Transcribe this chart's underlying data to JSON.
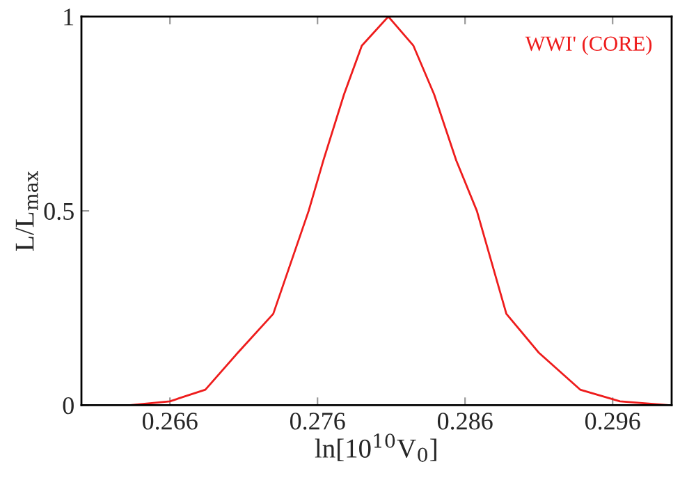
{
  "chart_data": {
    "type": "line",
    "xlabel": "ln[10$^{10}$V$_{0}$]",
    "ylabel": "L/L$_{max}$",
    "xlim": [
      0.26,
      0.3
    ],
    "xticks": [
      0.266,
      0.276,
      0.286,
      0.296
    ],
    "ylim": [
      0,
      1
    ],
    "yticks": [
      0,
      0.5,
      1
    ],
    "grid": false,
    "legend": "top right",
    "series": [
      {
        "name": "WWI' (CORE)",
        "color": "#ee1c1c",
        "x": [
          0.2633,
          0.266,
          0.2684,
          0.2706,
          0.273,
          0.2754,
          0.2764,
          0.2778,
          0.279,
          0.2808,
          0.2825,
          0.2839,
          0.2854,
          0.2868,
          0.2888,
          0.291,
          0.2938,
          0.2965,
          0.2998
        ],
        "values": [
          0,
          0.01,
          0.04,
          0.135,
          0.235,
          0.5,
          0.63,
          0.8,
          0.925,
          1.0,
          0.925,
          0.8,
          0.63,
          0.5,
          0.235,
          0.135,
          0.04,
          0.01,
          0
        ]
      }
    ]
  }
}
